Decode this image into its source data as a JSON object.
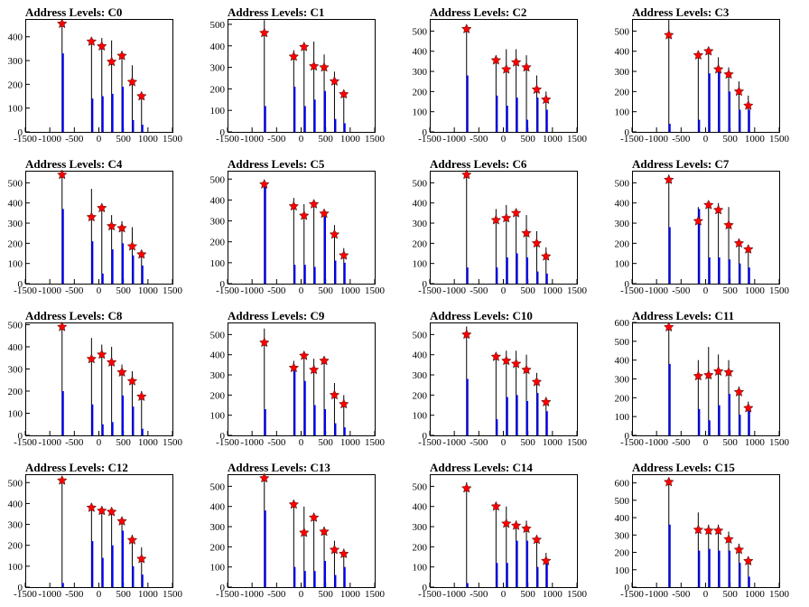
{
  "chart_data": [
    {
      "type": "bar",
      "title": "Address Levels: C0",
      "xlim": [
        -1500,
        1500
      ],
      "ylim": [
        0,
        475
      ],
      "yticks": [
        0,
        100,
        200,
        300,
        400
      ],
      "xticks": [
        -1500,
        -1000,
        -500,
        0,
        500,
        1000,
        1500
      ],
      "peaks": [
        {
          "x": -750,
          "black": 455,
          "blue": 330,
          "star": 455
        },
        {
          "x": -150,
          "black": 385,
          "blue": 140,
          "star": 380
        },
        {
          "x": 60,
          "black": 395,
          "blue": 150,
          "star": 360
        },
        {
          "x": 260,
          "black": 385,
          "blue": 160,
          "star": 295
        },
        {
          "x": 470,
          "black": 340,
          "blue": 190,
          "star": 320
        },
        {
          "x": 680,
          "black": 280,
          "blue": 50,
          "star": 210
        },
        {
          "x": 870,
          "black": 165,
          "blue": 30,
          "star": 150
        }
      ]
    },
    {
      "type": "bar",
      "title": "Address Levels: C1",
      "xlim": [
        -1500,
        1500
      ],
      "ylim": [
        0,
        525
      ],
      "yticks": [
        0,
        100,
        200,
        300,
        400,
        500
      ],
      "xticks": [
        -1500,
        -1000,
        -500,
        0,
        500,
        1000,
        1500
      ],
      "peaks": [
        {
          "x": -750,
          "black": 520,
          "blue": 120,
          "star": 460
        },
        {
          "x": -150,
          "black": 380,
          "blue": 210,
          "star": 350
        },
        {
          "x": 60,
          "black": 415,
          "blue": 120,
          "star": 395
        },
        {
          "x": 260,
          "black": 420,
          "blue": 150,
          "star": 305
        },
        {
          "x": 470,
          "black": 360,
          "blue": 190,
          "star": 300
        },
        {
          "x": 680,
          "black": 280,
          "blue": 60,
          "star": 235
        },
        {
          "x": 870,
          "black": 190,
          "blue": 40,
          "star": 175
        }
      ]
    },
    {
      "type": "bar",
      "title": "Address Levels: C2",
      "xlim": [
        -1500,
        1500
      ],
      "ylim": [
        0,
        560
      ],
      "yticks": [
        0,
        100,
        200,
        300,
        400,
        500
      ],
      "xticks": [
        -1500,
        -1000,
        -500,
        0,
        500,
        1000,
        1500
      ],
      "peaks": [
        {
          "x": -750,
          "black": 530,
          "blue": 280,
          "star": 510
        },
        {
          "x": -150,
          "black": 380,
          "blue": 180,
          "star": 355
        },
        {
          "x": 60,
          "black": 410,
          "blue": 130,
          "star": 310
        },
        {
          "x": 260,
          "black": 410,
          "blue": 170,
          "star": 345
        },
        {
          "x": 470,
          "black": 380,
          "blue": 60,
          "star": 320
        },
        {
          "x": 680,
          "black": 280,
          "blue": 170,
          "star": 210
        },
        {
          "x": 870,
          "black": 200,
          "blue": 110,
          "star": 160
        }
      ]
    },
    {
      "type": "bar",
      "title": "Address Levels: C3",
      "xlim": [
        -1500,
        1500
      ],
      "ylim": [
        0,
        560
      ],
      "yticks": [
        0,
        100,
        200,
        300,
        400,
        500
      ],
      "xticks": [
        -1500,
        -1000,
        -500,
        0,
        500,
        1000,
        1500
      ],
      "peaks": [
        {
          "x": -750,
          "black": 560,
          "blue": 40,
          "star": 480
        },
        {
          "x": -150,
          "black": 400,
          "blue": 60,
          "star": 380
        },
        {
          "x": 60,
          "black": 410,
          "blue": 290,
          "star": 400
        },
        {
          "x": 260,
          "black": 370,
          "blue": 300,
          "star": 310
        },
        {
          "x": 470,
          "black": 320,
          "blue": 200,
          "star": 285
        },
        {
          "x": 680,
          "black": 250,
          "blue": 110,
          "star": 200
        },
        {
          "x": 870,
          "black": 180,
          "blue": 110,
          "star": 130
        }
      ]
    },
    {
      "type": "bar",
      "title": "Address Levels: C4",
      "xlim": [
        -1500,
        1500
      ],
      "ylim": [
        0,
        560
      ],
      "yticks": [
        0,
        100,
        200,
        300,
        400,
        500
      ],
      "xticks": [
        -1500,
        -1000,
        -500,
        0,
        500,
        1000,
        1500
      ],
      "peaks": [
        {
          "x": -750,
          "black": 550,
          "blue": 370,
          "star": 540
        },
        {
          "x": -150,
          "black": 470,
          "blue": 210,
          "star": 330
        },
        {
          "x": 60,
          "black": 390,
          "blue": 50,
          "star": 375
        },
        {
          "x": 260,
          "black": 340,
          "blue": 170,
          "star": 285
        },
        {
          "x": 470,
          "black": 310,
          "blue": 200,
          "star": 275
        },
        {
          "x": 680,
          "black": 280,
          "blue": 140,
          "star": 185
        },
        {
          "x": 870,
          "black": 160,
          "blue": 90,
          "star": 145
        }
      ]
    },
    {
      "type": "bar",
      "title": "Address Levels: C5",
      "xlim": [
        -1500,
        1500
      ],
      "ylim": [
        0,
        540
      ],
      "yticks": [
        0,
        100,
        200,
        300,
        400,
        500
      ],
      "xticks": [
        -1500,
        -1000,
        -500,
        0,
        500,
        1000,
        1500
      ],
      "peaks": [
        {
          "x": -750,
          "black": 495,
          "blue": 480,
          "star": 475
        },
        {
          "x": -150,
          "black": 410,
          "blue": 90,
          "star": 370
        },
        {
          "x": 60,
          "black": 380,
          "blue": 90,
          "star": 325
        },
        {
          "x": 260,
          "black": 390,
          "blue": 80,
          "star": 380
        },
        {
          "x": 470,
          "black": 350,
          "blue": 320,
          "star": 335
        },
        {
          "x": 680,
          "black": 280,
          "blue": 110,
          "star": 235
        },
        {
          "x": 870,
          "black": 170,
          "blue": 100,
          "star": 135
        }
      ]
    },
    {
      "type": "bar",
      "title": "Address Levels: C6",
      "xlim": [
        -1500,
        1500
      ],
      "ylim": [
        0,
        560
      ],
      "yticks": [
        0,
        100,
        200,
        300,
        400,
        500
      ],
      "xticks": [
        -1500,
        -1000,
        -500,
        0,
        500,
        1000,
        1500
      ],
      "peaks": [
        {
          "x": -750,
          "black": 560,
          "blue": 80,
          "star": 540
        },
        {
          "x": -150,
          "black": 370,
          "blue": 80,
          "star": 315
        },
        {
          "x": 60,
          "black": 390,
          "blue": 130,
          "star": 325
        },
        {
          "x": 260,
          "black": 370,
          "blue": 150,
          "star": 350
        },
        {
          "x": 470,
          "black": 340,
          "blue": 130,
          "star": 250
        },
        {
          "x": 680,
          "black": 260,
          "blue": 60,
          "star": 200
        },
        {
          "x": 870,
          "black": 180,
          "blue": 50,
          "star": 135
        }
      ]
    },
    {
      "type": "bar",
      "title": "Address Levels: C7",
      "xlim": [
        -1500,
        1500
      ],
      "ylim": [
        0,
        560
      ],
      "yticks": [
        0,
        100,
        200,
        300,
        400,
        500
      ],
      "xticks": [
        -1500,
        -1000,
        -500,
        0,
        500,
        1000,
        1500
      ],
      "peaks": [
        {
          "x": -750,
          "black": 540,
          "blue": 280,
          "star": 515
        },
        {
          "x": -150,
          "black": 380,
          "blue": 370,
          "star": 310
        },
        {
          "x": 60,
          "black": 400,
          "blue": 130,
          "star": 390
        },
        {
          "x": 260,
          "black": 400,
          "blue": 130,
          "star": 365
        },
        {
          "x": 470,
          "black": 380,
          "blue": 120,
          "star": 290
        },
        {
          "x": 680,
          "black": 220,
          "blue": 100,
          "star": 200
        },
        {
          "x": 870,
          "black": 190,
          "blue": 80,
          "star": 170
        }
      ]
    },
    {
      "type": "bar",
      "title": "Address Levels: C8",
      "xlim": [
        -1500,
        1500
      ],
      "ylim": [
        0,
        510
      ],
      "yticks": [
        0,
        100,
        200,
        300,
        400,
        500
      ],
      "xticks": [
        -1500,
        -1000,
        -500,
        0,
        500,
        1000,
        1500
      ],
      "peaks": [
        {
          "x": -750,
          "black": 510,
          "blue": 200,
          "star": 490
        },
        {
          "x": -150,
          "black": 440,
          "blue": 140,
          "star": 345
        },
        {
          "x": 60,
          "black": 410,
          "blue": 50,
          "star": 365
        },
        {
          "x": 260,
          "black": 400,
          "blue": 60,
          "star": 330
        },
        {
          "x": 470,
          "black": 320,
          "blue": 180,
          "star": 285
        },
        {
          "x": 680,
          "black": 290,
          "blue": 130,
          "star": 245
        },
        {
          "x": 870,
          "black": 200,
          "blue": 30,
          "star": 175
        }
      ]
    },
    {
      "type": "bar",
      "title": "Address Levels: C9",
      "xlim": [
        -1500,
        1500
      ],
      "ylim": [
        0,
        560
      ],
      "yticks": [
        0,
        100,
        200,
        300,
        400,
        500
      ],
      "xticks": [
        -1500,
        -1000,
        -500,
        0,
        500,
        1000,
        1500
      ],
      "peaks": [
        {
          "x": -750,
          "black": 530,
          "blue": 130,
          "star": 460
        },
        {
          "x": -150,
          "black": 370,
          "blue": 320,
          "star": 335
        },
        {
          "x": 60,
          "black": 410,
          "blue": 270,
          "star": 395
        },
        {
          "x": 260,
          "black": 380,
          "blue": 150,
          "star": 325
        },
        {
          "x": 470,
          "black": 390,
          "blue": 130,
          "star": 370
        },
        {
          "x": 680,
          "black": 260,
          "blue": 60,
          "star": 200
        },
        {
          "x": 870,
          "black": 200,
          "blue": 40,
          "star": 155
        }
      ]
    },
    {
      "type": "bar",
      "title": "Address Levels: C10",
      "xlim": [
        -1500,
        1500
      ],
      "ylim": [
        0,
        560
      ],
      "yticks": [
        0,
        100,
        200,
        300,
        400,
        500
      ],
      "xticks": [
        -1500,
        -1000,
        -500,
        0,
        500,
        1000,
        1500
      ],
      "peaks": [
        {
          "x": -750,
          "black": 540,
          "blue": 280,
          "star": 500
        },
        {
          "x": -150,
          "black": 400,
          "blue": 80,
          "star": 390
        },
        {
          "x": 60,
          "black": 420,
          "blue": 190,
          "star": 370
        },
        {
          "x": 260,
          "black": 420,
          "blue": 200,
          "star": 355
        },
        {
          "x": 470,
          "black": 400,
          "blue": 170,
          "star": 325
        },
        {
          "x": 680,
          "black": 310,
          "blue": 210,
          "star": 265
        },
        {
          "x": 870,
          "black": 190,
          "blue": 120,
          "star": 165
        }
      ]
    },
    {
      "type": "bar",
      "title": "Address Levels: C11",
      "xlim": [
        -1500,
        1500
      ],
      "ylim": [
        0,
        600
      ],
      "yticks": [
        0,
        100,
        200,
        300,
        400,
        500,
        600
      ],
      "xticks": [
        -1500,
        -1000,
        -500,
        0,
        500,
        1000,
        1500
      ],
      "peaks": [
        {
          "x": -750,
          "black": 600,
          "blue": 380,
          "star": 575
        },
        {
          "x": -150,
          "black": 400,
          "blue": 140,
          "star": 315
        },
        {
          "x": 60,
          "black": 470,
          "blue": 80,
          "star": 320
        },
        {
          "x": 260,
          "black": 430,
          "blue": 160,
          "star": 340
        },
        {
          "x": 470,
          "black": 400,
          "blue": 220,
          "star": 335
        },
        {
          "x": 680,
          "black": 260,
          "blue": 110,
          "star": 230
        },
        {
          "x": 870,
          "black": 180,
          "blue": 140,
          "star": 145
        }
      ]
    },
    {
      "type": "bar",
      "title": "Address Levels: C12",
      "xlim": [
        -1500,
        1500
      ],
      "ylim": [
        0,
        540
      ],
      "yticks": [
        0,
        100,
        200,
        300,
        400,
        500
      ],
      "xticks": [
        -1500,
        -1000,
        -500,
        0,
        500,
        1000,
        1500
      ],
      "peaks": [
        {
          "x": -750,
          "black": 520,
          "blue": 20,
          "star": 510
        },
        {
          "x": -150,
          "black": 400,
          "blue": 220,
          "star": 380
        },
        {
          "x": 60,
          "black": 370,
          "blue": 140,
          "star": 365
        },
        {
          "x": 260,
          "black": 360,
          "blue": 200,
          "star": 360
        },
        {
          "x": 470,
          "black": 320,
          "blue": 270,
          "star": 315
        },
        {
          "x": 680,
          "black": 250,
          "blue": 100,
          "star": 225
        },
        {
          "x": 870,
          "black": 190,
          "blue": 60,
          "star": 135
        }
      ]
    },
    {
      "type": "bar",
      "title": "Address Levels: C13",
      "xlim": [
        -1500,
        1500
      ],
      "ylim": [
        0,
        560
      ],
      "yticks": [
        0,
        100,
        200,
        300,
        400,
        500
      ],
      "xticks": [
        -1500,
        -1000,
        -500,
        0,
        500,
        1000,
        1500
      ],
      "peaks": [
        {
          "x": -750,
          "black": 540,
          "blue": 380,
          "star": 540
        },
        {
          "x": -150,
          "black": 410,
          "blue": 100,
          "star": 410
        },
        {
          "x": 60,
          "black": 400,
          "blue": 80,
          "star": 270
        },
        {
          "x": 260,
          "black": 350,
          "blue": 80,
          "star": 345
        },
        {
          "x": 470,
          "black": 300,
          "blue": 130,
          "star": 275
        },
        {
          "x": 680,
          "black": 230,
          "blue": 60,
          "star": 185
        },
        {
          "x": 870,
          "black": 190,
          "blue": 100,
          "star": 165
        }
      ]
    },
    {
      "type": "bar",
      "title": "Address Levels: C14",
      "xlim": [
        -1500,
        1500
      ],
      "ylim": [
        0,
        560
      ],
      "yticks": [
        0,
        100,
        200,
        300,
        400,
        500
      ],
      "xticks": [
        -1500,
        -1000,
        -500,
        0,
        500,
        1000,
        1500
      ],
      "peaks": [
        {
          "x": -750,
          "black": 520,
          "blue": 20,
          "star": 490
        },
        {
          "x": -150,
          "black": 410,
          "blue": 120,
          "star": 400
        },
        {
          "x": 60,
          "black": 400,
          "blue": 120,
          "star": 315
        },
        {
          "x": 260,
          "black": 330,
          "blue": 230,
          "star": 305
        },
        {
          "x": 470,
          "black": 330,
          "blue": 230,
          "star": 290
        },
        {
          "x": 680,
          "black": 250,
          "blue": 100,
          "star": 235
        },
        {
          "x": 870,
          "black": 170,
          "blue": 130,
          "star": 130
        }
      ]
    },
    {
      "type": "bar",
      "title": "Address Levels: C15",
      "xlim": [
        -1500,
        1500
      ],
      "ylim": [
        0,
        650
      ],
      "yticks": [
        0,
        100,
        200,
        300,
        400,
        500,
        600
      ],
      "xticks": [
        -1500,
        -1000,
        -500,
        0,
        500,
        1000,
        1500
      ],
      "peaks": [
        {
          "x": -750,
          "black": 620,
          "blue": 360,
          "star": 605
        },
        {
          "x": -150,
          "black": 430,
          "blue": 210,
          "star": 330
        },
        {
          "x": 60,
          "black": 360,
          "blue": 220,
          "star": 325
        },
        {
          "x": 260,
          "black": 360,
          "blue": 210,
          "star": 325
        },
        {
          "x": 470,
          "black": 320,
          "blue": 210,
          "star": 275
        },
        {
          "x": 680,
          "black": 250,
          "blue": 140,
          "star": 215
        },
        {
          "x": 870,
          "black": 160,
          "blue": 60,
          "star": 150
        }
      ]
    }
  ]
}
